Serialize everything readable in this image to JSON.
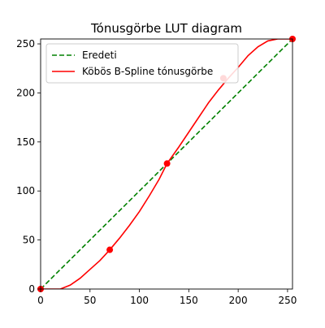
{
  "chart_data": {
    "type": "line",
    "title": "Tónusgörbe LUT diagram",
    "xlabel": "",
    "ylabel": "",
    "xlim": [
      0,
      255
    ],
    "ylim": [
      0,
      255
    ],
    "xticks": [
      0,
      50,
      100,
      150,
      200,
      250
    ],
    "yticks": [
      0,
      50,
      100,
      150,
      200,
      250
    ],
    "grid": false,
    "legend_position": "upper-left",
    "series": [
      {
        "name": "Eredeti",
        "style": "dashed",
        "color": "#008000",
        "x": [
          0,
          255
        ],
        "y": [
          0,
          255
        ]
      },
      {
        "name": "Köbös B-Spline tónusgörbe",
        "style": "solid",
        "color": "#ff0000",
        "x": [
          0,
          10,
          20,
          30,
          40,
          50,
          60,
          70,
          80,
          90,
          100,
          110,
          120,
          128,
          140,
          150,
          160,
          170,
          180,
          190,
          200,
          210,
          220,
          230,
          240,
          250,
          255
        ],
        "y": [
          0,
          0,
          0,
          4,
          11,
          20,
          29,
          40,
          52,
          65,
          79,
          95,
          112,
          128,
          145,
          160,
          175,
          190,
          203,
          215,
          226,
          238,
          247,
          253,
          255,
          255,
          255
        ]
      }
    ],
    "control_points": {
      "color": "#ff0000",
      "x": [
        0,
        70,
        128,
        185,
        255
      ],
      "y": [
        0,
        40,
        128,
        215,
        255
      ]
    }
  }
}
